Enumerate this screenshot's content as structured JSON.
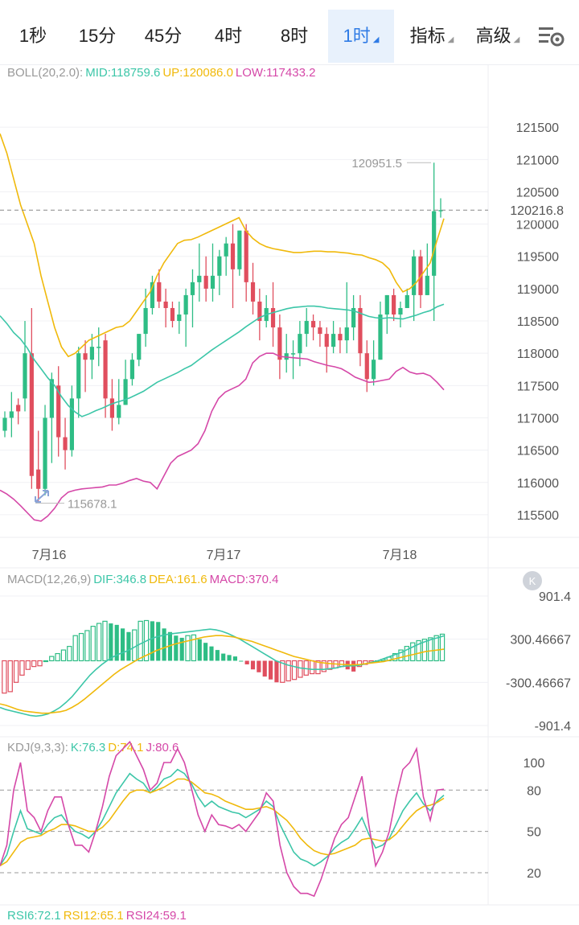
{
  "tabs": [
    {
      "label": "1秒",
      "active": false,
      "dropdown": false
    },
    {
      "label": "15分",
      "active": false,
      "dropdown": false
    },
    {
      "label": "45分",
      "active": false,
      "dropdown": false
    },
    {
      "label": "4时",
      "active": false,
      "dropdown": false
    },
    {
      "label": "8时",
      "active": false,
      "dropdown": false
    },
    {
      "label": "1时",
      "active": true,
      "dropdown": true
    },
    {
      "label": "指标",
      "active": false,
      "dropdown": true
    },
    {
      "label": "高级",
      "active": false,
      "dropdown": true
    }
  ],
  "settings_icon": "chart-settings-icon",
  "boll_legend": {
    "name": "BOLL(20,2.0):",
    "mid": "MID:118759.6",
    "up": "UP:120086.0",
    "low": "LOW:117433.2"
  },
  "macd_legend": {
    "name": "MACD(12,26,9)",
    "dif": "DIF:346.8",
    "dea": "DEA:161.6",
    "macd": "MACD:370.4"
  },
  "kdj_legend": {
    "name": "KDJ(9,3,3):",
    "k": "K:76.3",
    "d": "D:74.1",
    "j": "J:80.6"
  },
  "rsi_legend": {
    "rsi6": "RSI6:72.1",
    "rsi12": "RSI12:65.1",
    "rsi24": "RSI24:59.1"
  },
  "colors": {
    "up": "#2ebd85",
    "down": "#e04e5e",
    "mid": "#3cc6a8",
    "upper": "#f0b90b",
    "lower": "#d548a8",
    "price_tag": "#e04e5e",
    "accent": "#2f7be5"
  },
  "chart_data": [
    {
      "type": "candlestick",
      "title": "",
      "y_ticks": [
        121500,
        121000,
        120500,
        120000,
        119500,
        119000,
        118500,
        118000,
        117500,
        117000,
        116500,
        116000,
        115500
      ],
      "ylim": [
        115150,
        122100
      ],
      "x_ticks": [
        "7月16",
        "7月17",
        "7月18"
      ],
      "current_price": "120216.8",
      "current_price_value": 120216.8,
      "high_label": "120951.5",
      "high_value": 120951.5,
      "low_label": "115678.1",
      "low_value": 115678.1,
      "candles": [
        [
          116800,
          117000,
          116700,
          117100
        ],
        [
          117000,
          117100,
          116700,
          117400
        ],
        [
          117200,
          117100,
          116900,
          117300
        ],
        [
          117300,
          118000,
          117100,
          118500
        ],
        [
          118000,
          116100,
          115900,
          118700
        ],
        [
          116200,
          115900,
          115700,
          116800
        ],
        [
          115900,
          117000,
          115800,
          117200
        ],
        [
          117000,
          117600,
          116300,
          117700
        ],
        [
          117500,
          116700,
          116400,
          117800
        ],
        [
          116700,
          116500,
          116200,
          117000
        ],
        [
          116500,
          117300,
          116400,
          117500
        ],
        [
          117300,
          118000,
          117000,
          118100
        ],
        [
          118000,
          117900,
          117400,
          118200
        ],
        [
          117900,
          118100,
          117600,
          118300
        ],
        [
          118100,
          118100,
          117800,
          118400
        ],
        [
          118200,
          117300,
          117000,
          118300
        ],
        [
          117300,
          117000,
          116800,
          117600
        ],
        [
          117000,
          117200,
          116900,
          117600
        ],
        [
          117200,
          117600,
          117200,
          117900
        ],
        [
          117600,
          117900,
          117500,
          118000
        ],
        [
          117900,
          118300,
          117800,
          118300
        ],
        [
          118300,
          118700,
          118100,
          119000
        ],
        [
          118700,
          119100,
          118600,
          119200
        ],
        [
          119100,
          118800,
          118700,
          119300
        ],
        [
          118800,
          118700,
          118400,
          119000
        ],
        [
          118700,
          118500,
          118400,
          118800
        ],
        [
          118500,
          118600,
          118300,
          118800
        ],
        [
          118600,
          118900,
          118100,
          119000
        ],
        [
          118900,
          119100,
          118400,
          119300
        ],
        [
          119100,
          119200,
          118800,
          119700
        ],
        [
          119200,
          119000,
          118800,
          119500
        ],
        [
          119000,
          119200,
          118800,
          119700
        ],
        [
          119200,
          119500,
          118900,
          119600
        ],
        [
          119500,
          119700,
          119200,
          119800
        ],
        [
          119700,
          119300,
          118700,
          120000
        ],
        [
          119300,
          119900,
          119200,
          119900
        ],
        [
          119900,
          119100,
          118800,
          120000
        ],
        [
          119100,
          118800,
          118600,
          119400
        ],
        [
          118800,
          118500,
          118200,
          119000
        ],
        [
          118500,
          118700,
          118400,
          118900
        ],
        [
          118700,
          118400,
          118100,
          119100
        ],
        [
          118400,
          117900,
          117600,
          118600
        ],
        [
          117900,
          118000,
          117700,
          118300
        ],
        [
          118000,
          118000,
          117600,
          118200
        ],
        [
          118000,
          118300,
          117800,
          118500
        ],
        [
          118300,
          118500,
          118100,
          118700
        ],
        [
          118500,
          118400,
          118200,
          118600
        ],
        [
          118400,
          118300,
          118100,
          118500
        ],
        [
          118300,
          118100,
          117700,
          118400
        ],
        [
          118100,
          118300,
          118000,
          118500
        ],
        [
          118300,
          118200,
          118000,
          118400
        ],
        [
          118200,
          118400,
          118000,
          119100
        ],
        [
          118400,
          118700,
          118200,
          118900
        ],
        [
          118700,
          118000,
          117800,
          118900
        ],
        [
          118000,
          117600,
          117400,
          118200
        ],
        [
          117600,
          117900,
          117500,
          118200
        ],
        [
          117900,
          118600,
          117900,
          118800
        ],
        [
          118600,
          118900,
          118300,
          118900
        ],
        [
          118900,
          118600,
          118500,
          119000
        ],
        [
          118600,
          118700,
          118400,
          118800
        ],
        [
          118700,
          118900,
          118700,
          119000
        ],
        [
          118900,
          119500,
          118500,
          119600
        ],
        [
          119500,
          118900,
          118700,
          119600
        ],
        [
          118900,
          119200,
          118900,
          119700
        ],
        [
          119200,
          120200,
          118500,
          120951.5
        ],
        [
          120200,
          120216.8,
          120100,
          120400
        ]
      ],
      "series": [
        {
          "name": "MID",
          "values": [
            118580,
            118460,
            118320,
            118220,
            118080,
            117900,
            117760,
            117620,
            117500,
            117330,
            117190,
            117090,
            117020,
            117060,
            117110,
            117150,
            117200,
            117240,
            117270,
            117310,
            117360,
            117410,
            117480,
            117550,
            117600,
            117650,
            117700,
            117760,
            117810,
            117890,
            117970,
            118050,
            118120,
            118190,
            118260,
            118330,
            118410,
            118480,
            118550,
            118600,
            118630,
            118660,
            118690,
            118710,
            118720,
            118730,
            118730,
            118720,
            118700,
            118690,
            118680,
            118670,
            118650,
            118610,
            118570,
            118550,
            118540,
            118550,
            118540,
            118530,
            118560,
            118590,
            118630,
            118660,
            118720,
            118759.6
          ]
        },
        {
          "name": "UP",
          "values": [
            121400,
            121100,
            120700,
            120300,
            120000,
            119700,
            119200,
            118800,
            118400,
            118100,
            117950,
            118000,
            118100,
            118200,
            118250,
            118300,
            118350,
            118400,
            118420,
            118500,
            118650,
            118800,
            118950,
            119200,
            119400,
            119550,
            119700,
            119750,
            119760,
            119800,
            119850,
            119900,
            119950,
            120000,
            120050,
            120100,
            119900,
            119780,
            119700,
            119650,
            119620,
            119600,
            119580,
            119560,
            119560,
            119570,
            119580,
            119580,
            119570,
            119570,
            119560,
            119550,
            119530,
            119520,
            119480,
            119450,
            119400,
            119300,
            119100,
            118950,
            119000,
            119100,
            119250,
            119400,
            119750,
            120086.0
          ]
        },
        {
          "name": "LOW",
          "values": [
            115880,
            115820,
            115740,
            115640,
            115530,
            115420,
            115400,
            115480,
            115600,
            115760,
            115850,
            115880,
            115900,
            115910,
            115920,
            115930,
            115960,
            115960,
            115990,
            116030,
            116060,
            116020,
            116000,
            115900,
            116100,
            116300,
            116400,
            116450,
            116500,
            116600,
            116800,
            117100,
            117300,
            117400,
            117450,
            117500,
            117600,
            117850,
            117950,
            118000,
            118000,
            117950,
            117940,
            117930,
            117920,
            117910,
            117870,
            117840,
            117810,
            117790,
            117760,
            117700,
            117630,
            117590,
            117550,
            117560,
            117580,
            117600,
            117720,
            117780,
            117710,
            117680,
            117690,
            117650,
            117550,
            117433.2
          ]
        }
      ]
    },
    {
      "type": "bar",
      "title": "",
      "y_ticks": [
        901.4,
        300.46667,
        -300.46667,
        -901.4
      ],
      "ylim": [
        -1000,
        1000
      ],
      "macd_bars": [
        -450,
        -430,
        -300,
        -200,
        -120,
        -80,
        -70,
        0,
        60,
        100,
        150,
        200,
        350,
        380,
        420,
        480,
        520,
        550,
        520,
        500,
        450,
        400,
        430,
        550,
        560,
        550,
        540,
        450,
        400,
        350,
        320,
        350,
        360,
        300,
        250,
        200,
        150,
        100,
        80,
        60,
        0,
        -50,
        -120,
        -160,
        -220,
        -260,
        -300,
        -300,
        -280,
        -260,
        -230,
        -200,
        -180,
        -180,
        -150,
        -120,
        -100,
        -80,
        -120,
        -150,
        -80,
        -50,
        -20,
        0,
        20,
        50,
        100,
        150,
        200,
        250,
        280,
        300,
        320,
        350,
        370.4
      ],
      "series": [
        {
          "name": "DIF",
          "values": [
            -650,
            -680,
            -700,
            -720,
            -740,
            -760,
            -770,
            -760,
            -740,
            -700,
            -650,
            -580,
            -500,
            -400,
            -300,
            -200,
            -120,
            -50,
            10,
            60,
            100,
            130,
            170,
            220,
            260,
            300,
            330,
            350,
            370,
            380,
            390,
            400,
            410,
            420,
            430,
            440,
            430,
            410,
            380,
            340,
            300,
            250,
            200,
            150,
            100,
            50,
            0,
            -30,
            -60,
            -80,
            -100,
            -110,
            -120,
            -120,
            -120,
            -110,
            -100,
            -80,
            -70,
            -70,
            -60,
            -40,
            -20,
            0,
            30,
            60,
            90,
            120,
            160,
            200,
            240,
            270,
            300,
            320,
            346.8
          ]
        },
        {
          "name": "DEA",
          "values": [
            -600,
            -620,
            -650,
            -680,
            -700,
            -710,
            -720,
            -730,
            -730,
            -720,
            -710,
            -690,
            -650,
            -600,
            -540,
            -470,
            -400,
            -330,
            -260,
            -190,
            -130,
            -80,
            -30,
            20,
            60,
            100,
            140,
            170,
            200,
            230,
            250,
            270,
            290,
            310,
            330,
            340,
            350,
            350,
            340,
            330,
            310,
            290,
            270,
            240,
            210,
            180,
            150,
            120,
            90,
            60,
            40,
            20,
            0,
            -20,
            -30,
            -40,
            -45,
            -50,
            -55,
            -55,
            -50,
            -40,
            -30,
            -20,
            -10,
            10,
            30,
            50,
            70,
            90,
            110,
            130,
            140,
            150,
            161.6
          ]
        }
      ]
    },
    {
      "type": "line",
      "title": "",
      "y_ticks": [
        100,
        80,
        50,
        20
      ],
      "ylim": [
        0,
        115
      ],
      "series": [
        {
          "name": "K",
          "values": [
            25,
            33,
            50,
            65,
            52,
            50,
            48,
            55,
            60,
            62,
            55,
            50,
            48,
            45,
            50,
            58,
            68,
            78,
            85,
            92,
            88,
            85,
            78,
            82,
            88,
            90,
            95,
            92,
            85,
            75,
            68,
            72,
            68,
            66,
            64,
            63,
            60,
            63,
            66,
            72,
            68,
            55,
            45,
            35,
            30,
            28,
            25,
            28,
            32,
            38,
            42,
            45,
            52,
            60,
            48,
            38,
            40,
            45,
            55,
            65,
            72,
            78,
            70,
            65,
            72,
            76.3
          ]
        },
        {
          "name": "D",
          "values": [
            25,
            28,
            35,
            42,
            45,
            46,
            47,
            50,
            52,
            55,
            55,
            54,
            52,
            50,
            50,
            53,
            58,
            65,
            72,
            78,
            80,
            80,
            78,
            80,
            82,
            85,
            88,
            88,
            86,
            82,
            78,
            77,
            75,
            72,
            70,
            68,
            66,
            66,
            67,
            68,
            66,
            62,
            58,
            52,
            45,
            40,
            36,
            34,
            33,
            34,
            36,
            38,
            40,
            44,
            45,
            44,
            43,
            44,
            48,
            54,
            60,
            65,
            68,
            69,
            71,
            74.1
          ]
        },
        {
          "name": "J",
          "values": [
            25,
            40,
            80,
            100,
            65,
            60,
            50,
            65,
            75,
            75,
            55,
            40,
            40,
            35,
            50,
            68,
            90,
            105,
            110,
            115,
            105,
            95,
            80,
            85,
            100,
            100,
            110,
            100,
            82,
            62,
            50,
            62,
            55,
            54,
            52,
            55,
            50,
            57,
            64,
            78,
            72,
            40,
            20,
            10,
            5,
            5,
            3,
            15,
            30,
            45,
            55,
            60,
            75,
            90,
            55,
            25,
            35,
            50,
            75,
            95,
            100,
            110,
            75,
            58,
            80,
            80.6
          ]
        }
      ]
    }
  ]
}
